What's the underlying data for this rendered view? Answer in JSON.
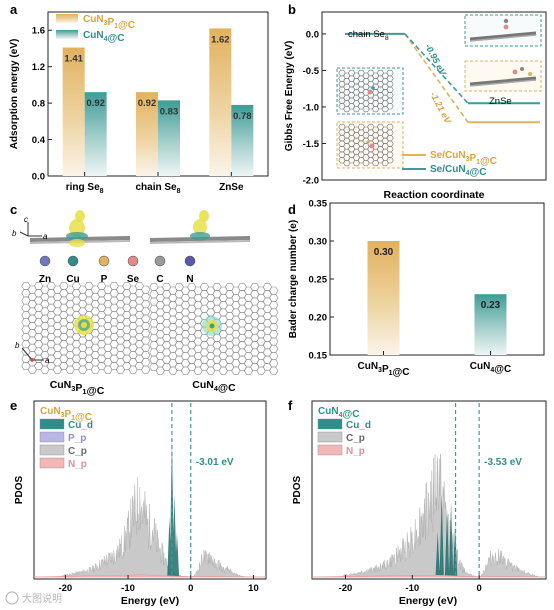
{
  "colors": {
    "gold": "#E2B15F",
    "teal": "#3E9C97",
    "gold_text": "#D9A441",
    "teal_text": "#2F8E8A",
    "dashed": "#3E9C97",
    "grey": "#BBBBBB",
    "dark_grey": "#555555",
    "pink": "#F2B8B8",
    "lavender": "#B9B6E6"
  },
  "panel_letters": [
    "a",
    "b",
    "c",
    "d",
    "e",
    "f"
  ],
  "chart_data": [
    {
      "id": "a",
      "type": "bar",
      "ylabel": "Adsorption energy (eV)",
      "categories": [
        "ring Se8",
        "chain Se8",
        "ZnSe"
      ],
      "category_labels": [
        {
          "main": "ring Se",
          "sub": "8"
        },
        {
          "main": "chain Se",
          "sub": "8"
        },
        {
          "main": "ZnSe",
          "sub": ""
        }
      ],
      "series": [
        {
          "name": "CuN3P1@C",
          "legend": {
            "a": "CuN",
            "s1": "3",
            "b": "P",
            "s2": "1",
            "c": "@C"
          },
          "color": "gold",
          "values": [
            1.41,
            0.92,
            1.62
          ],
          "labels": [
            "1.41",
            "0.92",
            "1.62"
          ]
        },
        {
          "name": "CuN4@C",
          "legend": {
            "a": "CuN",
            "s1": "4",
            "b": "@C",
            "s2": "",
            "c": ""
          },
          "color": "teal",
          "values": [
            0.92,
            0.83,
            0.78
          ],
          "labels": [
            "0.92",
            "0.83",
            "0.78"
          ]
        }
      ],
      "ylim": [
        0.0,
        1.8
      ],
      "yticks": [
        0.0,
        0.4,
        0.8,
        1.2,
        1.6
      ],
      "ytick_labels": [
        "0.0",
        "0.4",
        "0.8",
        "1.2",
        "1.6"
      ]
    },
    {
      "id": "b",
      "type": "line",
      "xlabel": "Reaction coordinate",
      "ylabel": "Gibbs Free Energy (eV)",
      "ylim": [
        -2.0,
        0.3
      ],
      "yticks": [
        -2.0,
        -1.5,
        -1.0,
        -0.5,
        0.0
      ],
      "ytick_labels": [
        "-2.0",
        "-1.5",
        "-1.0",
        "-0.5",
        "0.0"
      ],
      "states": [
        "chain Se8",
        "ZnSe"
      ],
      "state_labels": [
        {
          "main": "chain Se",
          "sub": "8"
        },
        {
          "main": "ZnSe",
          "sub": ""
        }
      ],
      "series": [
        {
          "name": "Se/CuN3P1@C",
          "legend": {
            "a": "Se/CuN",
            "s1": "3",
            "b": "P",
            "s2": "1",
            "c": "@C"
          },
          "color": "gold",
          "values": [
            0.0,
            -1.21
          ],
          "step_label": "-1.21 eV"
        },
        {
          "name": "Se/CuN4@C",
          "legend": {
            "a": "Se/CuN",
            "s1": "4",
            "b": "@C",
            "s2": "",
            "c": ""
          },
          "color": "teal",
          "values": [
            0.0,
            -0.95
          ],
          "step_label": "-0.95 eV"
        }
      ]
    },
    {
      "id": "c",
      "type": "other",
      "elements": [
        "Zn",
        "Cu",
        "P",
        "Se",
        "C",
        "N"
      ],
      "element_colors": [
        "#6E78B8",
        "#2F8E8A",
        "#E2B15F",
        "#E08A8A",
        "#9A9A9A",
        "#5A5AAA"
      ],
      "axes": {
        "top": [
          "c",
          "b",
          "a"
        ],
        "bottom": [
          "b",
          "a"
        ]
      },
      "structure_labels": [
        {
          "a": "CuN",
          "s1": "3",
          "b": "P",
          "s2": "1",
          "c": "@C"
        },
        {
          "a": "CuN",
          "s1": "4",
          "b": "@C",
          "s2": "",
          "c": ""
        }
      ]
    },
    {
      "id": "d",
      "type": "bar",
      "ylabel": "Bader charge number (e)",
      "categories": [
        "CuN3P1@C",
        "CuN4@C"
      ],
      "category_labels": [
        {
          "a": "CuN",
          "s1": "3",
          "b": "P",
          "s2": "1",
          "c": "@C"
        },
        {
          "a": "CuN",
          "s1": "4",
          "b": "@C",
          "s2": "",
          "c": ""
        }
      ],
      "values": [
        0.3,
        0.23
      ],
      "labels": [
        "0.30",
        "0.23"
      ],
      "colors": [
        "gold",
        "teal"
      ],
      "ylim": [
        0.15,
        0.35
      ],
      "yticks": [
        0.15,
        0.2,
        0.25,
        0.3,
        0.35
      ],
      "ytick_labels": [
        "0.15",
        "0.20",
        "0.25",
        "0.30",
        "0.35"
      ]
    },
    {
      "id": "e",
      "type": "area",
      "title": {
        "a": "CuN",
        "s1": "3",
        "b": "P",
        "s2": "1",
        "c": "@C"
      },
      "xlabel": "Energy (eV)",
      "ylabel": "PDOS",
      "xlim": [
        -25,
        12
      ],
      "xticks": [
        -20,
        -10,
        0,
        10
      ],
      "xtick_labels": [
        "-20",
        "-10",
        "0",
        "10"
      ],
      "legend": [
        "Cu_d",
        "P_p",
        "C_p",
        "N_p"
      ],
      "legend_colors": [
        "teal",
        "lavender",
        "grey",
        "pink"
      ],
      "dashed_lines_x": [
        -3.01,
        0
      ],
      "annotation": "-3.01 eV",
      "c_p_envelope": [
        [
          -25,
          0
        ],
        [
          -21,
          0
        ],
        [
          -20,
          0.02
        ],
        [
          -18,
          0.04
        ],
        [
          -16,
          0.07
        ],
        [
          -15,
          0.1
        ],
        [
          -14,
          0.14
        ],
        [
          -13,
          0.18
        ],
        [
          -12,
          0.22
        ],
        [
          -11,
          0.3
        ],
        [
          -10.5,
          0.36
        ],
        [
          -10,
          0.44
        ],
        [
          -9.5,
          0.55
        ],
        [
          -9,
          0.62
        ],
        [
          -8.5,
          0.7
        ],
        [
          -8.2,
          0.82
        ],
        [
          -8,
          0.72
        ],
        [
          -7.6,
          0.64
        ],
        [
          -7.2,
          0.58
        ],
        [
          -6.8,
          0.48
        ],
        [
          -6.3,
          0.52
        ],
        [
          -5.8,
          0.42
        ],
        [
          -5.3,
          0.32
        ],
        [
          -4.8,
          0.25
        ],
        [
          -4.3,
          0.2
        ],
        [
          -3.8,
          0.13
        ],
        [
          -3.4,
          0.08
        ],
        [
          -3,
          0.05
        ],
        [
          -2.5,
          0.03
        ],
        [
          -2,
          0.02
        ],
        [
          -1.5,
          0.01
        ],
        [
          -1,
          0.005
        ],
        [
          -0.5,
          0.002
        ],
        [
          0,
          0
        ],
        [
          0.5,
          0.01
        ],
        [
          1,
          0.05
        ],
        [
          1.5,
          0.12
        ],
        [
          2,
          0.2
        ],
        [
          2.5,
          0.18
        ],
        [
          3,
          0.22
        ],
        [
          3.5,
          0.16
        ],
        [
          4,
          0.1
        ],
        [
          4.5,
          0.13
        ],
        [
          5,
          0.08
        ],
        [
          5.5,
          0.06
        ],
        [
          6,
          0.08
        ],
        [
          6.5,
          0.04
        ],
        [
          7,
          0.03
        ],
        [
          8,
          0.01
        ],
        [
          9,
          0
        ],
        [
          12,
          0
        ]
      ],
      "cu_d_peaks": [
        [
          -3.0,
          0.93
        ],
        [
          -2.6,
          0.55
        ],
        [
          -3.4,
          0.4
        ],
        [
          -2.2,
          0.3
        ]
      ],
      "n_p_envelope": [
        [
          -25,
          0
        ],
        [
          -20,
          0.005
        ],
        [
          -15,
          0.01
        ],
        [
          -10,
          0.012
        ],
        [
          -8,
          0.015
        ],
        [
          -5,
          0.01
        ],
        [
          -2,
          0.005
        ],
        [
          0,
          0.002
        ],
        [
          3,
          0.004
        ],
        [
          6,
          0.002
        ],
        [
          12,
          0
        ]
      ]
    },
    {
      "id": "f",
      "type": "area",
      "title": {
        "a": "CuN",
        "s1": "4",
        "b": "@C",
        "s2": "",
        "c": ""
      },
      "xlabel": "Energy (eV)",
      "ylabel": "PDOS",
      "xlim": [
        -25,
        10
      ],
      "xticks": [
        -20,
        -10,
        0
      ],
      "xtick_labels": [
        "-20",
        "-10",
        "0"
      ],
      "legend": [
        "Cu_d",
        "C_p",
        "N_p"
      ],
      "legend_colors": [
        "teal",
        "grey",
        "pink"
      ],
      "dashed_lines_x": [
        -3.53,
        0
      ],
      "annotation": "-3.53 eV",
      "c_p_envelope": [
        [
          -25,
          0
        ],
        [
          -21,
          0
        ],
        [
          -20,
          0.02
        ],
        [
          -18,
          0.04
        ],
        [
          -16,
          0.07
        ],
        [
          -15,
          0.09
        ],
        [
          -14,
          0.12
        ],
        [
          -13,
          0.16
        ],
        [
          -12,
          0.22
        ],
        [
          -11,
          0.3
        ],
        [
          -10,
          0.38
        ],
        [
          -9,
          0.48
        ],
        [
          -8.5,
          0.55
        ],
        [
          -8,
          0.62
        ],
        [
          -7.5,
          0.7
        ],
        [
          -7,
          0.78
        ],
        [
          -6.5,
          0.86
        ],
        [
          -6,
          0.96
        ],
        [
          -5.7,
          0.9
        ],
        [
          -5.3,
          0.7
        ],
        [
          -4.8,
          0.55
        ],
        [
          -4.3,
          0.42
        ],
        [
          -3.8,
          0.3
        ],
        [
          -3.3,
          0.2
        ],
        [
          -2.8,
          0.12
        ],
        [
          -2.3,
          0.07
        ],
        [
          -1.8,
          0.04
        ],
        [
          -1.2,
          0.02
        ],
        [
          -0.5,
          0.005
        ],
        [
          0,
          0
        ],
        [
          0.5,
          0.03
        ],
        [
          1,
          0.1
        ],
        [
          1.5,
          0.16
        ],
        [
          2,
          0.2
        ],
        [
          2.5,
          0.17
        ],
        [
          3,
          0.22
        ],
        [
          3.5,
          0.15
        ],
        [
          4,
          0.12
        ],
        [
          4.5,
          0.14
        ],
        [
          5,
          0.09
        ],
        [
          6,
          0.07
        ],
        [
          7,
          0.04
        ],
        [
          8,
          0.02
        ],
        [
          9,
          0
        ],
        [
          10,
          0
        ]
      ],
      "cu_d_peaks": [
        [
          -5.6,
          0.55
        ],
        [
          -4.8,
          0.45
        ],
        [
          -4.2,
          0.5
        ],
        [
          -3.6,
          0.35
        ],
        [
          -6.2,
          0.3
        ]
      ],
      "n_p_envelope": [
        [
          -25,
          0
        ],
        [
          -20,
          0.004
        ],
        [
          -15,
          0.008
        ],
        [
          -10,
          0.01
        ],
        [
          -7,
          0.012
        ],
        [
          -5,
          0.01
        ],
        [
          -2,
          0.004
        ],
        [
          0,
          0.002
        ],
        [
          3,
          0.003
        ],
        [
          7,
          0.002
        ],
        [
          10,
          0
        ]
      ]
    }
  ],
  "watermark": "大图说明"
}
